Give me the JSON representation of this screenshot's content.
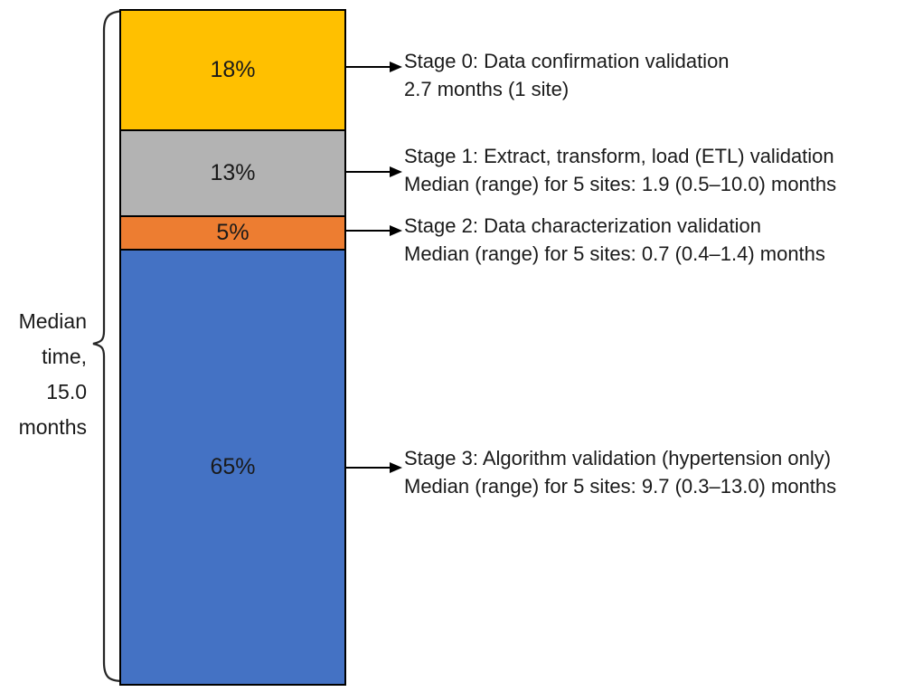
{
  "chart_data": {
    "type": "bar",
    "subtype": "single-stacked-column",
    "title": "",
    "xlabel": "",
    "ylabel": "",
    "unit": "percent of total median time",
    "total_label": "Median time, 15.0 months",
    "total_months": 15.0,
    "categories": [
      "Stage 0: Data confirmation validation",
      "Stage 1: Extract, transform, load (ETL) validation",
      "Stage 2: Data characterization validation",
      "Stage 3: Algorithm validation (hypertension only)"
    ],
    "values": [
      18,
      13,
      5,
      65
    ],
    "colors": [
      "#FFC000",
      "#B3B3B3",
      "#ED7D31",
      "#4472C4"
    ],
    "annotations": [
      "Stage 0: Data confirmation validation — 2.7 months (1 site)",
      "Stage 1: Extract, transform, load (ETL) validation — Median (range) for 5 sites: 1.9 (0.5–10.0) months",
      "Stage 2: Data characterization validation — Median (range) for 5 sites: 0.7 (0.4–1.4) months",
      "Stage 3: Algorithm validation (hypertension only) — Median (range) for 5 sites: 9.7 (0.3–13.0) months"
    ],
    "layout": {
      "legend": "none",
      "grid": false,
      "bar_outline_color": "#000000",
      "label_side": "right",
      "total_brace_side": "left"
    }
  },
  "figure": {
    "left_label": {
      "lines": [
        "Median",
        "time,",
        "15.0",
        "months"
      ]
    },
    "segments": [
      {
        "label": "18%",
        "value": 18,
        "color": "#FFC000"
      },
      {
        "label": "13%",
        "value": 13,
        "color": "#B3B3B3"
      },
      {
        "label": "5%",
        "value": 5,
        "color": "#ED7D31"
      },
      {
        "label": "65%",
        "value": 65,
        "color": "#4472C4"
      }
    ],
    "annotations": [
      {
        "line1": "Stage 0: Data confirmation validation",
        "line2": "2.7 months (1 site)"
      },
      {
        "line1": "Stage 1: Extract, transform, load (ETL) validation",
        "line2": "Median (range) for 5 sites: 1.9 (0.5–10.0) months"
      },
      {
        "line1": "Stage 2: Data characterization validation",
        "line2": "Median (range) for 5 sites: 0.7 (0.4–1.4) months"
      },
      {
        "line1": "Stage 3: Algorithm validation (hypertension only)",
        "line2": "Median (range) for 5 sites: 9.7 (0.3–13.0) months"
      }
    ]
  }
}
